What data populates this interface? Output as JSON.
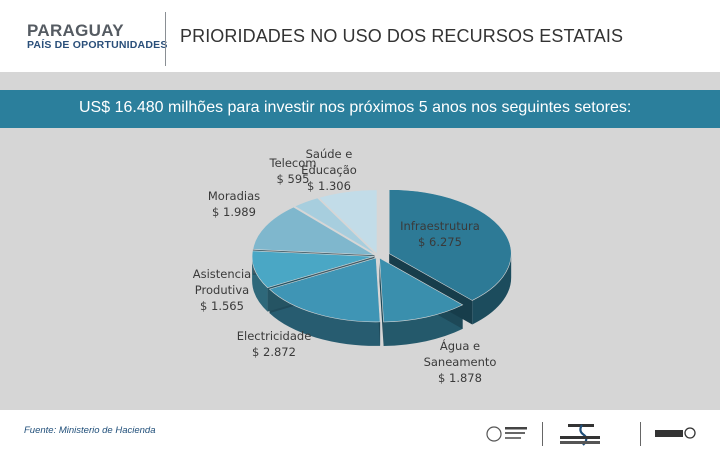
{
  "header": {
    "brand_name": "PARAGUAY",
    "brand_tagline": "PAÍS DE OPORTUNIDADES",
    "title": "PRIORIDADES NO USO DOS RECURSOS ESTATAIS"
  },
  "banner": {
    "text": "US$ 16.480 milhões para investir nos próximos 5 anos nos seguintes setores:"
  },
  "chart_data": {
    "type": "pie",
    "title": "US$ 16.480 milhões para investir nos próximos 5 anos nos seguintes setores:",
    "unit": "US$ milhões",
    "categories": [
      "Infraestrutura",
      "Água e Saneamento",
      "Electricidade",
      "Asistencia Produtiva",
      "Moradias",
      "Telecom",
      "Saúde e Educação"
    ],
    "values": [
      6275,
      1878,
      2872,
      1565,
      1989,
      595,
      1306
    ],
    "labels": [
      {
        "lines": [
          "Infraestrutura",
          "$ 6.275"
        ]
      },
      {
        "lines": [
          "Água e",
          "Saneamento",
          "$ 1.878"
        ]
      },
      {
        "lines": [
          "Electricidade",
          "$ 2.872"
        ]
      },
      {
        "lines": [
          "Asistencia",
          "Produtiva",
          "$ 1.565"
        ]
      },
      {
        "lines": [
          "Moradias",
          "$ 1.989"
        ]
      },
      {
        "lines": [
          "Telecom",
          "$ 595"
        ]
      },
      {
        "lines": [
          "Saúde e",
          "Educação",
          "$ 1.306"
        ]
      }
    ],
    "colors": [
      "#2d7a96",
      "#3a8fad",
      "#3f95b5",
      "#4aa7c5",
      "#7fb7cd",
      "#a7cede",
      "#c2dce8"
    ],
    "exploded_slice": "Infraestrutura"
  },
  "footer": {
    "source": "Fuente: Ministerio de Hacienda",
    "logos": [
      "Ministerio de Hacienda",
      "Gobierno Nacional",
      "REDIEX"
    ]
  }
}
